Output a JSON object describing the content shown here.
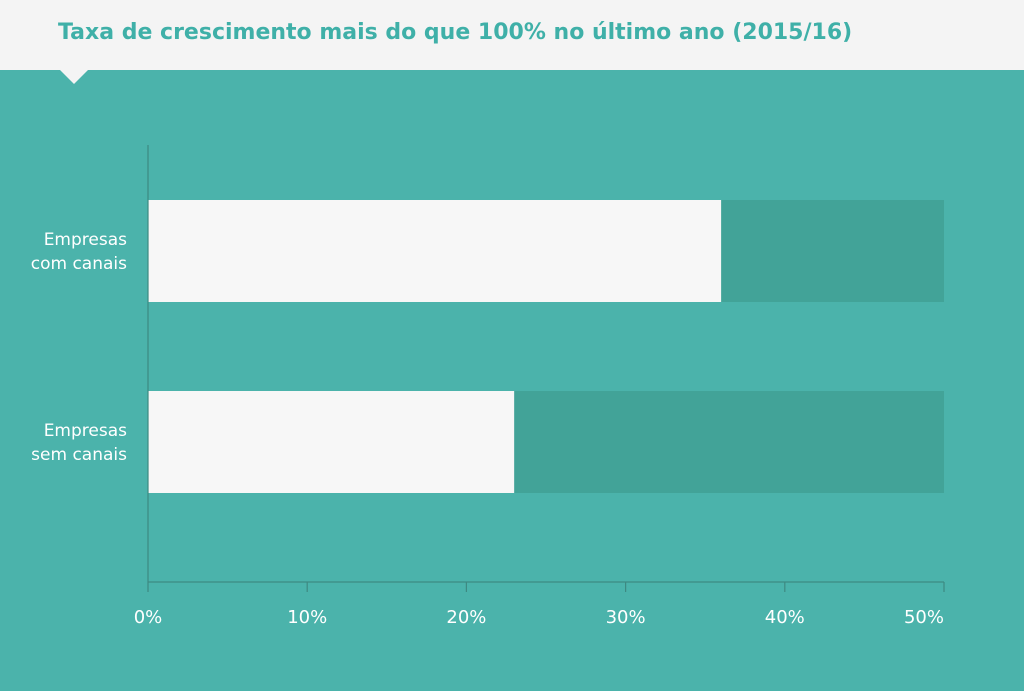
{
  "header": {
    "title": "Taxa de crescimento mais do que 100% no último ano (2015/16)"
  },
  "colors": {
    "background": "#4bb3ab",
    "header_bg": "#f4f4f4",
    "title": "#3fb0a8",
    "bar_fill": "#f7f7f7",
    "bar_track": "#42a398",
    "axis": "#3d8a82",
    "label": "#ffffff"
  },
  "chart_data": {
    "type": "bar",
    "orientation": "horizontal",
    "title": "Taxa de crescimento mais do que 100% no último ano (2015/16)",
    "categories": [
      [
        "Empresas",
        "com canais"
      ],
      [
        "Empresas",
        "sem canais"
      ]
    ],
    "values": [
      36,
      23
    ],
    "xlim": [
      0,
      50
    ],
    "xticks": [
      0,
      10,
      20,
      30,
      40,
      50
    ],
    "xtick_labels": [
      "0%",
      "10%",
      "20%",
      "30%",
      "40%",
      "50%"
    ],
    "grid": false,
    "legend": "none"
  }
}
